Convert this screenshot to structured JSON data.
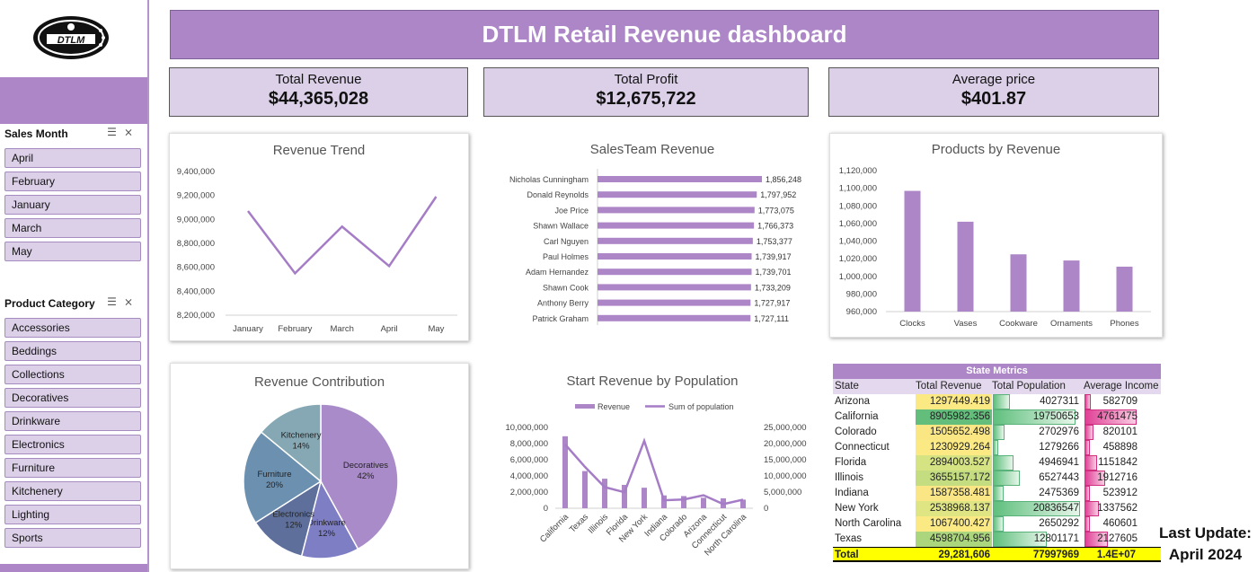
{
  "header": {
    "title": "DTLM Retail Revenue dashboard"
  },
  "logo": {
    "text": "DTLM"
  },
  "kpis": {
    "revenue": {
      "label": "Total Revenue",
      "value": "$44,365,028"
    },
    "profit": {
      "label": "Total Profit",
      "value": "$12,675,722"
    },
    "avg_price": {
      "label": "Average price",
      "value": "$401.87"
    }
  },
  "slicers": {
    "sales_month": {
      "title": "Sales Month",
      "items": [
        "April",
        "February",
        "January",
        "March",
        "May"
      ]
    },
    "product_category": {
      "title": "Product Category",
      "items": [
        "Accessories",
        "Beddings",
        "Collections",
        "Decoratives",
        "Drinkware",
        "Electronics",
        "Furniture",
        "Kitchenery",
        "Lighting",
        "Sports"
      ]
    }
  },
  "last_update": {
    "line1": "Last Update:",
    "line2": "April 2024"
  },
  "colors": {
    "accent": "#ad86c8",
    "light_accent": "#dcd0e9",
    "line": "#a57cc6"
  },
  "chart_data": [
    {
      "type": "line",
      "title": "Revenue Trend",
      "categories": [
        "January",
        "February",
        "March",
        "April",
        "May"
      ],
      "values": [
        9070000,
        8550000,
        8940000,
        8610000,
        9190000
      ],
      "ylim": [
        8200000,
        9400000
      ],
      "yticks": [
        "8,200,000",
        "8,400,000",
        "8,600,000",
        "8,800,000",
        "9,000,000",
        "9,200,000",
        "9,400,000"
      ]
    },
    {
      "type": "bar",
      "orientation": "horizontal",
      "title": "SalesTeam Revenue",
      "categories": [
        "Nicholas Cunningham",
        "Donald Reynolds",
        "Joe Price",
        "Shawn Wallace",
        "Carl Nguyen",
        "Paul Holmes",
        "Adam Hernandez",
        "Shawn Cook",
        "Anthony Berry",
        "Patrick Graham"
      ],
      "values": [
        1856248,
        1797952,
        1773075,
        1766373,
        1753377,
        1739917,
        1739701,
        1733209,
        1727917,
        1727111
      ],
      "labels": [
        "1,856,248",
        "1,797,952",
        "1,773,075",
        "1,766,373",
        "1,753,377",
        "1,739,917",
        "1,739,701",
        "1,733,209",
        "1,727,917",
        "1,727,111"
      ]
    },
    {
      "type": "bar",
      "title": "Products by Revenue",
      "categories": [
        "Clocks",
        "Vases",
        "Cookware",
        "Ornaments",
        "Phones"
      ],
      "values": [
        1097000,
        1062000,
        1025000,
        1018000,
        1011000
      ],
      "ylim": [
        960000,
        1120000
      ],
      "yticks": [
        "960,000",
        "980,000",
        "1,000,000",
        "1,020,000",
        "1,040,000",
        "1,060,000",
        "1,080,000",
        "1,100,000",
        "1,120,000"
      ]
    },
    {
      "type": "pie",
      "title": "Revenue Contribution",
      "slices": [
        {
          "label": "Decoratives",
          "pct": "42%",
          "value": 42,
          "color": "#a98bc9"
        },
        {
          "label": "Drinkware",
          "pct": "12%",
          "value": 12,
          "color": "#7e7ec5"
        },
        {
          "label": "Electronics",
          "pct": "12%",
          "value": 12,
          "color": "#5d6f9a"
        },
        {
          "label": "Furniture",
          "pct": "20%",
          "value": 20,
          "color": "#6c90b0"
        },
        {
          "label": "Kitchenery",
          "pct": "14%",
          "value": 14,
          "color": "#85a8b4"
        }
      ]
    },
    {
      "type": "bar",
      "title": "Start Revenue by Population",
      "categories": [
        "California",
        "Texas",
        "Illinois",
        "Florida",
        "New York",
        "Indiana",
        "Colorado",
        "Arizona",
        "Connecticut",
        "North Carolina"
      ],
      "series": [
        {
          "name": "Revenue",
          "type": "bar",
          "values": [
            8905982,
            4598705,
            3655157,
            2894004,
            2538968,
            1587358,
            1505652,
            1297449,
            1230929,
            1067400
          ]
        },
        {
          "name": "Sum of population",
          "type": "line",
          "values": [
            19750653,
            12801171,
            6527443,
            4946941,
            20836547,
            2475369,
            2702976,
            4027311,
            1279266,
            2650292
          ]
        }
      ],
      "ylim_left": [
        0,
        10000000
      ],
      "ylim_right": [
        0,
        25000000
      ],
      "yticks_left": [
        "0",
        "2,000,000",
        "4,000,000",
        "6,000,000",
        "8,000,000",
        "10,000,000"
      ],
      "yticks_right": [
        "0",
        "5,000,000",
        "10,000,000",
        "15,000,000",
        "20,000,000",
        "25,000,000"
      ]
    }
  ],
  "state_metrics": {
    "title": "State Metrics",
    "headers": [
      "State",
      "Total Revenue",
      "Total Population",
      "Average Income"
    ],
    "rows": [
      {
        "state": "Arizona",
        "revenue": "1297449.419",
        "population": "4027311",
        "income": "582709",
        "rev_color": "#fbe984",
        "pop": 4027311,
        "inc": 582709
      },
      {
        "state": "California",
        "revenue": "8905982.356",
        "population": "19750653",
        "income": "4761475",
        "rev_color": "#63be7b",
        "pop": 19750653,
        "inc": 4761475
      },
      {
        "state": "Colorado",
        "revenue": "1505652.498",
        "population": "2702976",
        "income": "820101",
        "rev_color": "#fae784",
        "pop": 2702976,
        "inc": 820101
      },
      {
        "state": "Connecticut",
        "revenue": "1230929.264",
        "population": "1279266",
        "income": "458898",
        "rev_color": "#fbea84",
        "pop": 1279266,
        "inc": 458898
      },
      {
        "state": "Florida",
        "revenue": "2894003.527",
        "population": "4946941",
        "income": "1151842",
        "rev_color": "#d6e382",
        "pop": 4946941,
        "inc": 1151842
      },
      {
        "state": "Illinois",
        "revenue": "3655157.172",
        "population": "6527443",
        "income": "1912716",
        "rev_color": "#c4dd80",
        "pop": 6527443,
        "inc": 1912716
      },
      {
        "state": "Indiana",
        "revenue": "1587358.481",
        "population": "2475369",
        "income": "523912",
        "rev_color": "#fae684",
        "pop": 2475369,
        "inc": 523912
      },
      {
        "state": "New York",
        "revenue": "2538968.137",
        "population": "20836547",
        "income": "1337562",
        "rev_color": "#dfe583",
        "pop": 20836547,
        "inc": 1337562
      },
      {
        "state": "North Carolina",
        "revenue": "1067400.427",
        "population": "2650292",
        "income": "460601",
        "rev_color": "#fbea84",
        "pop": 2650292,
        "inc": 460601
      },
      {
        "state": "Texas",
        "revenue": "4598704.956",
        "population": "12801171",
        "income": "2127605",
        "rev_color": "#acd67e",
        "pop": 12801171,
        "inc": 2127605
      }
    ],
    "total": {
      "label": "Total",
      "revenue": "29,281,606",
      "population": "77997969",
      "income": "1.4E+07"
    }
  }
}
